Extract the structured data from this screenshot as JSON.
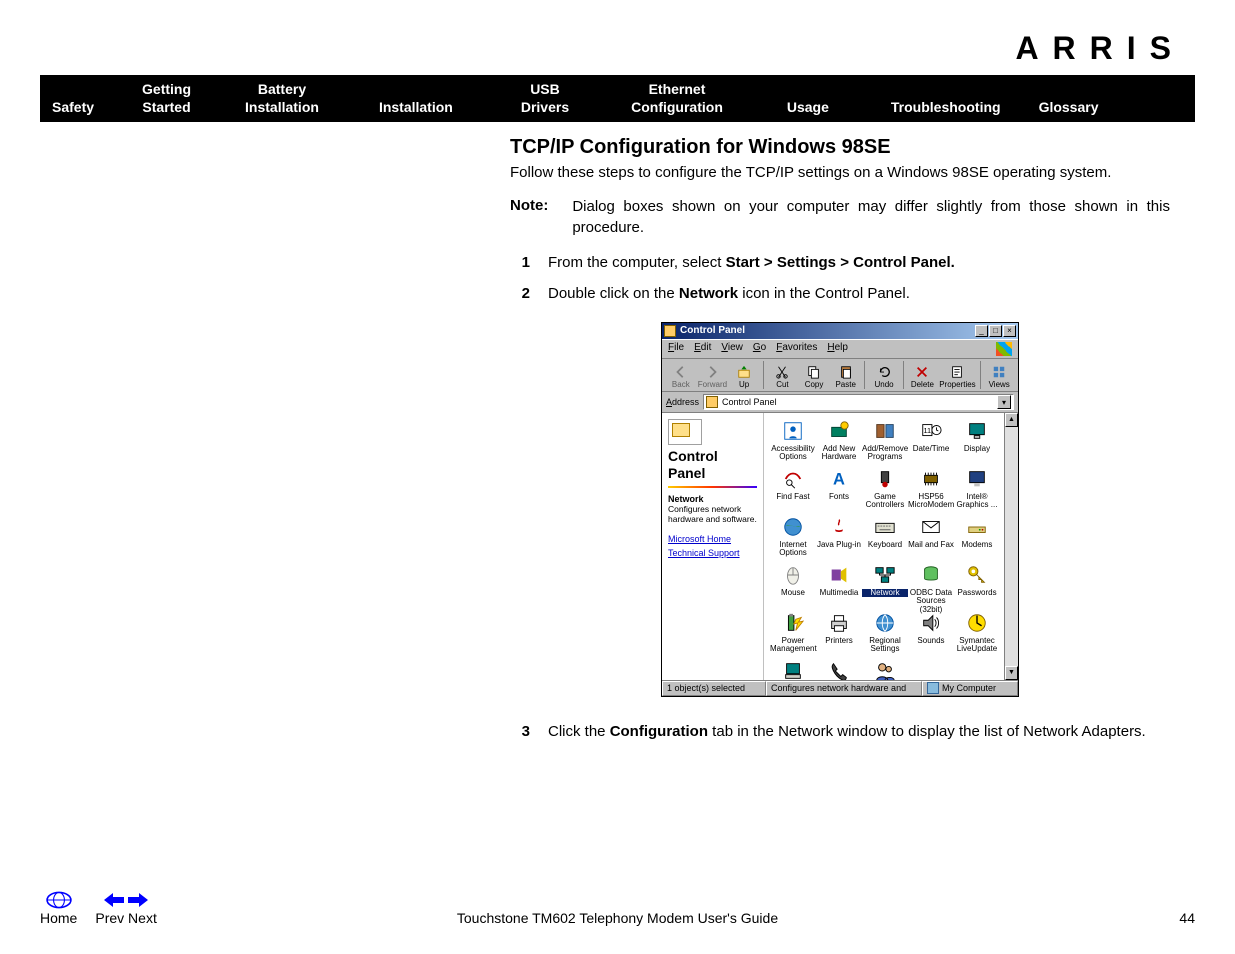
{
  "brand": "ARRIS",
  "nav": [
    {
      "label": "Safety"
    },
    {
      "label": "Getting\nStarted"
    },
    {
      "label": "Battery\nInstallation"
    },
    {
      "label": "Installation"
    },
    {
      "label": "USB\nDrivers"
    },
    {
      "label": "Ethernet\nConfiguration"
    },
    {
      "label": "Usage"
    },
    {
      "label": "Troubleshooting"
    },
    {
      "label": "Glossary"
    }
  ],
  "content": {
    "heading": "TCP/IP Configuration for Windows 98SE",
    "intro": "Follow these steps to configure the TCP/IP settings on a Windows 98SE operating system.",
    "note_label": "Note:",
    "note_text": "Dialog boxes shown on your computer may differ slightly from those shown in this procedure.",
    "step1_num": "1",
    "step1_a": "From the computer, select ",
    "step1_b": "Start > Settings > Control Panel.",
    "step2_num": "2",
    "step2_a": "Double click on the ",
    "step2_b": "Network",
    "step2_c": " icon in the Control Panel.",
    "step3_num": "3",
    "step3_a": "Click the ",
    "step3_b": "Configuration",
    "step3_c": " tab in the Network window to display the list of Network Adapters."
  },
  "win98": {
    "title": "Control Panel",
    "menus": [
      "File",
      "Edit",
      "View",
      "Go",
      "Favorites",
      "Help"
    ],
    "toolbar": [
      {
        "label": "Back",
        "icon": "back",
        "enabled": false
      },
      {
        "label": "Forward",
        "icon": "fwd",
        "enabled": false
      },
      {
        "label": "Up",
        "icon": "up",
        "enabled": true
      },
      {
        "sep": true
      },
      {
        "label": "Cut",
        "icon": "cut",
        "enabled": true
      },
      {
        "label": "Copy",
        "icon": "copy",
        "enabled": true
      },
      {
        "label": "Paste",
        "icon": "paste",
        "enabled": true
      },
      {
        "sep": true
      },
      {
        "label": "Undo",
        "icon": "undo",
        "enabled": true
      },
      {
        "sep": true
      },
      {
        "label": "Delete",
        "icon": "delete",
        "enabled": true
      },
      {
        "label": "Properties",
        "icon": "props",
        "enabled": true
      },
      {
        "sep": true
      },
      {
        "label": "Views",
        "icon": "views",
        "enabled": true
      }
    ],
    "address_label": "Address",
    "address_value": "Control Panel",
    "left": {
      "title_l1": "Control",
      "title_l2": "Panel",
      "sub": "Network",
      "desc": "Configures network hardware and software.",
      "link1": "Microsoft Home",
      "link2": "Technical Support"
    },
    "icons": [
      {
        "label": "Accessibility Options",
        "icon": "access"
      },
      {
        "label": "Add New Hardware",
        "icon": "addhw"
      },
      {
        "label": "Add/Remove Programs",
        "icon": "addrm"
      },
      {
        "label": "Date/Time",
        "icon": "date"
      },
      {
        "label": "Display",
        "icon": "display"
      },
      {
        "label": "Find Fast",
        "icon": "findfast"
      },
      {
        "label": "Fonts",
        "icon": "fonts"
      },
      {
        "label": "Game Controllers",
        "icon": "game"
      },
      {
        "label": "HSP56 MicroModem",
        "icon": "modemchip"
      },
      {
        "label": "Intel® Graphics ...",
        "icon": "intel"
      },
      {
        "label": "Internet Options",
        "icon": "inet"
      },
      {
        "label": "Java Plug-in",
        "icon": "java"
      },
      {
        "label": "Keyboard",
        "icon": "keyboard"
      },
      {
        "label": "Mail and Fax",
        "icon": "mail"
      },
      {
        "label": "Modems",
        "icon": "modems"
      },
      {
        "label": "Mouse",
        "icon": "mouse"
      },
      {
        "label": "Multimedia",
        "icon": "mmedia"
      },
      {
        "label": "Network",
        "icon": "network",
        "selected": true
      },
      {
        "label": "ODBC Data Sources (32bit)",
        "icon": "odbc"
      },
      {
        "label": "Passwords",
        "icon": "passwords"
      },
      {
        "label": "Power Management",
        "icon": "power"
      },
      {
        "label": "Printers",
        "icon": "printers"
      },
      {
        "label": "Regional Settings",
        "icon": "regional"
      },
      {
        "label": "Sounds",
        "icon": "sounds"
      },
      {
        "label": "Symantec LiveUpdate",
        "icon": "symantec"
      },
      {
        "label": "System",
        "icon": "system"
      },
      {
        "label": "Telephony",
        "icon": "telephony"
      },
      {
        "label": "Users",
        "icon": "users"
      }
    ],
    "status_left": "1 object(s) selected",
    "status_mid": "Configures network hardware and",
    "status_right": "My Computer"
  },
  "footer": {
    "home": "Home",
    "prev": "Prev",
    "next": "Next",
    "guide": "Touchstone TM602 Telephony Modem User's Guide",
    "page": "44"
  }
}
